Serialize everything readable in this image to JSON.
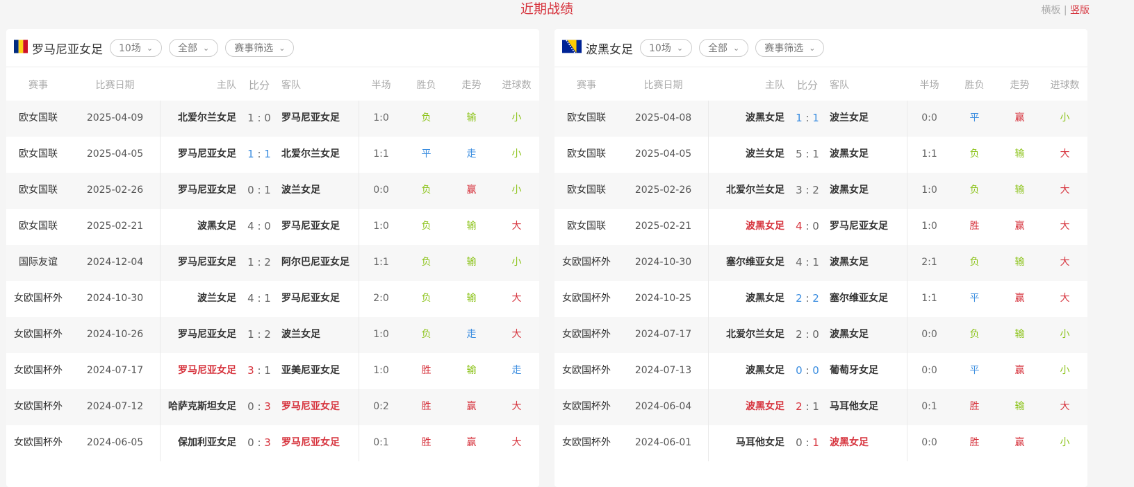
{
  "title": "近期战绩",
  "layout_switch": {
    "horizontal": "横板",
    "sep": "|",
    "vertical": "竖版"
  },
  "colors": {
    "red": "#d6323c",
    "green": "#8cc31a",
    "blue": "#3c8ee0",
    "胜": "#d6323c",
    "赢": "#d6323c",
    "大": "#d6323c",
    "负": "#8cc31a",
    "输": "#8cc31a",
    "小": "#8cc31a",
    "平": "#3c8ee0",
    "走": "#3c8ee0"
  },
  "columns": [
    "赛事",
    "比赛日期",
    "主队",
    "比分",
    "客队",
    "半场",
    "胜负",
    "走势",
    "进球数"
  ],
  "panels": [
    {
      "team": "罗马尼亚女足",
      "flag": "romania-flag",
      "filters": [
        "10场",
        "全部",
        "赛事筛选"
      ],
      "rows": [
        {
          "comp": "欧女国联",
          "date": "2025-04-09",
          "home": "北爱尔兰女足",
          "sh": "1",
          "sa": "0",
          "away": "罗马尼亚女足",
          "half": "1:0",
          "wl": "负",
          "trend": "输",
          "goals": "小",
          "hl": "",
          "sc": [
            "",
            ""
          ]
        },
        {
          "comp": "欧女国联",
          "date": "2025-04-05",
          "home": "罗马尼亚女足",
          "sh": "1",
          "sa": "1",
          "away": "北爱尔兰女足",
          "half": "1:1",
          "wl": "平",
          "trend": "走",
          "goals": "小",
          "hl": "",
          "sc": [
            "blue",
            "blue"
          ]
        },
        {
          "comp": "欧女国联",
          "date": "2025-02-26",
          "home": "罗马尼亚女足",
          "sh": "0",
          "sa": "1",
          "away": "波兰女足",
          "half": "0:0",
          "wl": "负",
          "trend": "赢",
          "goals": "小",
          "hl": "",
          "sc": [
            "",
            ""
          ]
        },
        {
          "comp": "欧女国联",
          "date": "2025-02-21",
          "home": "波黑女足",
          "sh": "4",
          "sa": "0",
          "away": "罗马尼亚女足",
          "half": "1:0",
          "wl": "负",
          "trend": "输",
          "goals": "大",
          "hl": "",
          "sc": [
            "",
            ""
          ]
        },
        {
          "comp": "国际友谊",
          "date": "2024-12-04",
          "home": "罗马尼亚女足",
          "sh": "1",
          "sa": "2",
          "away": "阿尔巴尼亚女足",
          "half": "1:1",
          "wl": "负",
          "trend": "输",
          "goals": "小",
          "hl": "",
          "sc": [
            "",
            ""
          ]
        },
        {
          "comp": "女欧国杯外",
          "date": "2024-10-30",
          "home": "波兰女足",
          "sh": "4",
          "sa": "1",
          "away": "罗马尼亚女足",
          "half": "2:0",
          "wl": "负",
          "trend": "输",
          "goals": "大",
          "hl": "",
          "sc": [
            "",
            ""
          ]
        },
        {
          "comp": "女欧国杯外",
          "date": "2024-10-26",
          "home": "罗马尼亚女足",
          "sh": "1",
          "sa": "2",
          "away": "波兰女足",
          "half": "1:0",
          "wl": "负",
          "trend": "走",
          "goals": "大",
          "hl": "",
          "sc": [
            "",
            ""
          ]
        },
        {
          "comp": "女欧国杯外",
          "date": "2024-07-17",
          "home": "罗马尼亚女足",
          "sh": "3",
          "sa": "1",
          "away": "亚美尼亚女足",
          "half": "1:0",
          "wl": "胜",
          "trend": "输",
          "goals": "走",
          "hl": "home",
          "sc": [
            "red",
            ""
          ]
        },
        {
          "comp": "女欧国杯外",
          "date": "2024-07-12",
          "home": "哈萨克斯坦女足",
          "sh": "0",
          "sa": "3",
          "away": "罗马尼亚女足",
          "half": "0:2",
          "wl": "胜",
          "trend": "赢",
          "goals": "大",
          "hl": "away",
          "sc": [
            "",
            "red"
          ]
        },
        {
          "comp": "女欧国杯外",
          "date": "2024-06-05",
          "home": "保加利亚女足",
          "sh": "0",
          "sa": "3",
          "away": "罗马尼亚女足",
          "half": "0:1",
          "wl": "胜",
          "trend": "赢",
          "goals": "大",
          "hl": "away",
          "sc": [
            "",
            "red"
          ]
        }
      ]
    },
    {
      "team": "波黑女足",
      "flag": "bosnia-flag",
      "filters": [
        "10场",
        "全部",
        "赛事筛选"
      ],
      "rows": [
        {
          "comp": "欧女国联",
          "date": "2025-04-08",
          "home": "波黑女足",
          "sh": "1",
          "sa": "1",
          "away": "波兰女足",
          "half": "0:0",
          "wl": "平",
          "trend": "赢",
          "goals": "小",
          "hl": "",
          "sc": [
            "blue",
            "blue"
          ]
        },
        {
          "comp": "欧女国联",
          "date": "2025-04-05",
          "home": "波兰女足",
          "sh": "5",
          "sa": "1",
          "away": "波黑女足",
          "half": "1:1",
          "wl": "负",
          "trend": "输",
          "goals": "大",
          "hl": "",
          "sc": [
            "",
            ""
          ]
        },
        {
          "comp": "欧女国联",
          "date": "2025-02-26",
          "home": "北爱尔兰女足",
          "sh": "3",
          "sa": "2",
          "away": "波黑女足",
          "half": "1:0",
          "wl": "负",
          "trend": "输",
          "goals": "大",
          "hl": "",
          "sc": [
            "",
            ""
          ]
        },
        {
          "comp": "欧女国联",
          "date": "2025-02-21",
          "home": "波黑女足",
          "sh": "4",
          "sa": "0",
          "away": "罗马尼亚女足",
          "half": "1:0",
          "wl": "胜",
          "trend": "赢",
          "goals": "大",
          "hl": "home",
          "sc": [
            "red",
            ""
          ]
        },
        {
          "comp": "女欧国杯外",
          "date": "2024-10-30",
          "home": "塞尔维亚女足",
          "sh": "4",
          "sa": "1",
          "away": "波黑女足",
          "half": "2:1",
          "wl": "负",
          "trend": "输",
          "goals": "大",
          "hl": "",
          "sc": [
            "",
            ""
          ]
        },
        {
          "comp": "女欧国杯外",
          "date": "2024-10-25",
          "home": "波黑女足",
          "sh": "2",
          "sa": "2",
          "away": "塞尔维亚女足",
          "half": "1:1",
          "wl": "平",
          "trend": "赢",
          "goals": "大",
          "hl": "",
          "sc": [
            "blue",
            "blue"
          ]
        },
        {
          "comp": "女欧国杯外",
          "date": "2024-07-17",
          "home": "北爱尔兰女足",
          "sh": "2",
          "sa": "0",
          "away": "波黑女足",
          "half": "0:0",
          "wl": "负",
          "trend": "输",
          "goals": "小",
          "hl": "",
          "sc": [
            "",
            ""
          ]
        },
        {
          "comp": "女欧国杯外",
          "date": "2024-07-13",
          "home": "波黑女足",
          "sh": "0",
          "sa": "0",
          "away": "葡萄牙女足",
          "half": "0:0",
          "wl": "平",
          "trend": "赢",
          "goals": "小",
          "hl": "",
          "sc": [
            "blue",
            "blue"
          ]
        },
        {
          "comp": "女欧国杯外",
          "date": "2024-06-04",
          "home": "波黑女足",
          "sh": "2",
          "sa": "1",
          "away": "马耳他女足",
          "half": "0:1",
          "wl": "胜",
          "trend": "输",
          "goals": "大",
          "hl": "home",
          "sc": [
            "red",
            ""
          ]
        },
        {
          "comp": "女欧国杯外",
          "date": "2024-06-01",
          "home": "马耳他女足",
          "sh": "0",
          "sa": "1",
          "away": "波黑女足",
          "half": "0:0",
          "wl": "胜",
          "trend": "赢",
          "goals": "小",
          "hl": "away",
          "sc": [
            "",
            "red"
          ]
        }
      ]
    }
  ]
}
